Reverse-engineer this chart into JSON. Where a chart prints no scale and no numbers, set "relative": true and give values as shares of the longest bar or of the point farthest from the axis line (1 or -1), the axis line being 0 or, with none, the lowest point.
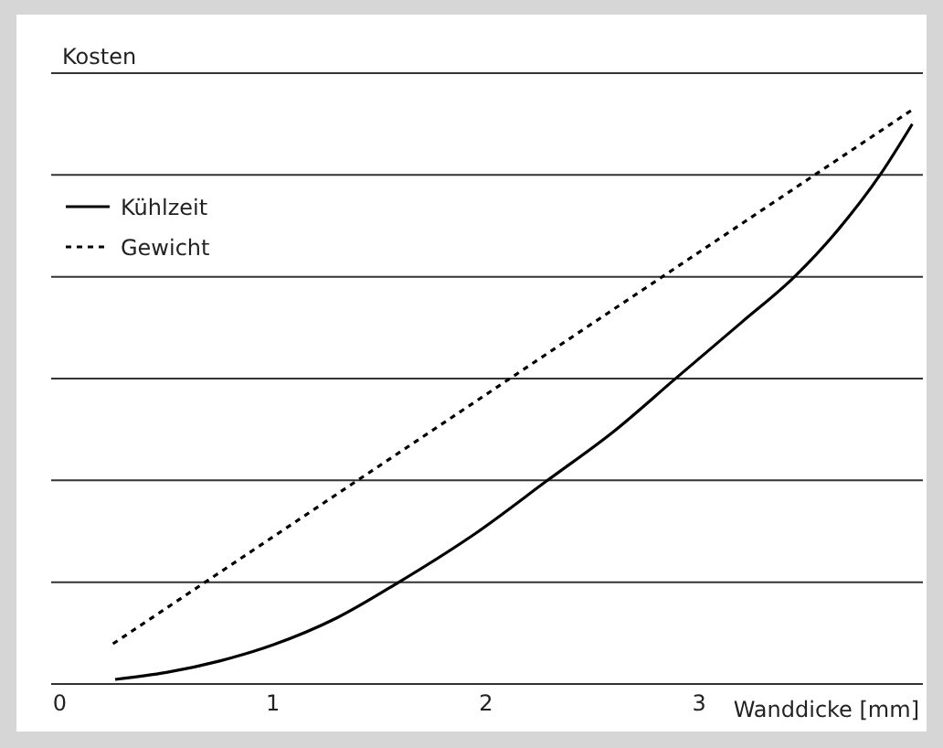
{
  "chart_data": {
    "type": "line",
    "relative": true,
    "ylabel": "Kosten",
    "xlabel": "Wanddicke [mm]",
    "xlim": [
      -0.04,
      4.05
    ],
    "xticks": [
      0,
      1,
      2,
      3
    ],
    "grid": "y",
    "legend": "top left",
    "marker": "none",
    "series": [
      {
        "name": "Kühlzeit",
        "color": "#000000",
        "line_style": "solid",
        "x": [
          0.26,
          0.5,
          0.75,
          1.0,
          1.3,
          1.59,
          1.95,
          2.29,
          2.6,
          2.89,
          3.2,
          3.45,
          3.65,
          3.85,
          4.0
        ],
        "values": [
          0.008,
          0.02,
          0.04,
          0.068,
          0.115,
          0.177,
          0.262,
          0.355,
          0.44,
          0.532,
          0.63,
          0.71,
          0.79,
          0.887,
          0.975
        ]
      },
      {
        "name": "Gewicht",
        "color": "#000000",
        "line_style": "dotted",
        "x": [
          0.25,
          4.0
        ],
        "values": [
          0.07,
          1.0
        ]
      }
    ]
  }
}
